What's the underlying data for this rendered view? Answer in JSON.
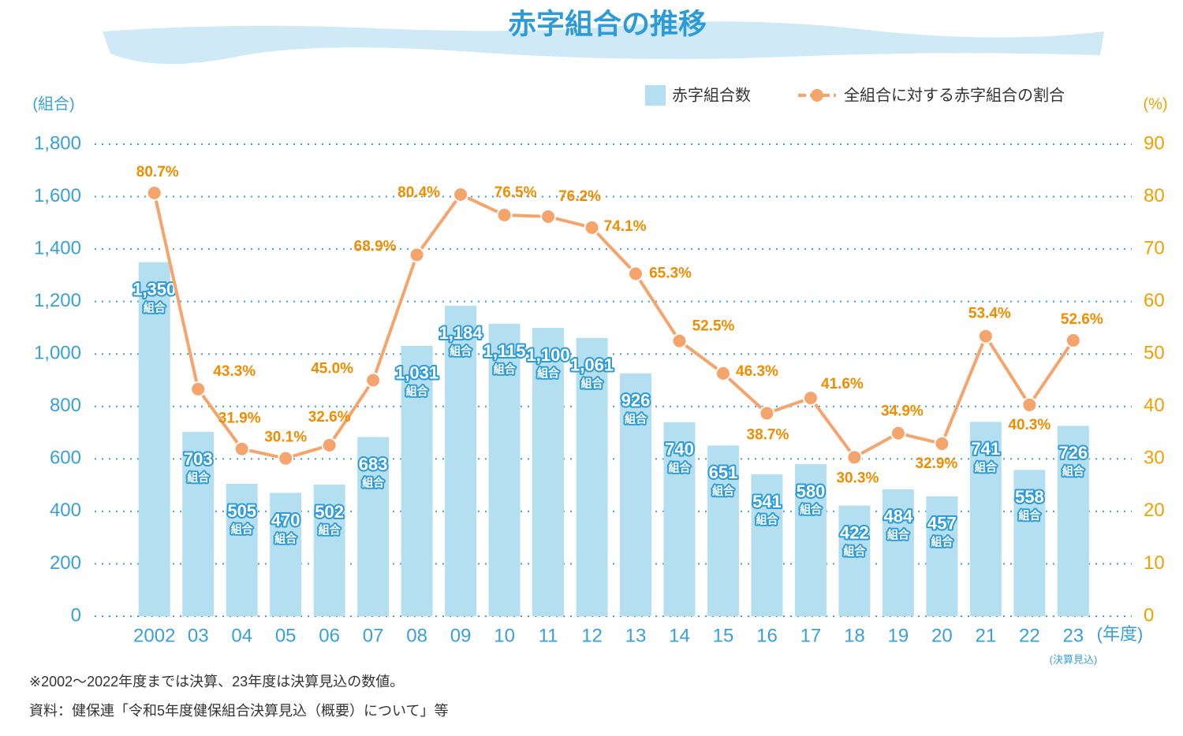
{
  "chart_data": {
    "type": "combo",
    "title": "赤字組合の推移",
    "y_label": "(組合)",
    "y2_label": "(%)",
    "x_label": "(年度)",
    "annotation": "(決算見込)",
    "categories": [
      "2002",
      "03",
      "04",
      "05",
      "06",
      "07",
      "08",
      "09",
      "10",
      "11",
      "12",
      "13",
      "14",
      "15",
      "16",
      "17",
      "18",
      "19",
      "20",
      "21",
      "22",
      "23"
    ],
    "series": [
      {
        "name": "赤字組合数",
        "type": "bar",
        "color": "#b3dff0",
        "label_unit": "組合",
        "values": [
          1350,
          703,
          505,
          470,
          502,
          683,
          1031,
          1184,
          1115,
          1100,
          1061,
          926,
          740,
          651,
          541,
          580,
          422,
          484,
          457,
          741,
          558,
          726
        ],
        "value_labels": [
          "1,350",
          "703",
          "505",
          "470",
          "502",
          "683",
          "1,031",
          "1,184",
          "1,115",
          "1,100",
          "1,061",
          "926",
          "740",
          "651",
          "541",
          "580",
          "422",
          "484",
          "457",
          "741",
          "558",
          "726"
        ]
      },
      {
        "name": "全組合に対する赤字組合の割合",
        "type": "line",
        "axis": "y2",
        "color": "#f5a46c",
        "values": [
          80.7,
          43.3,
          31.9,
          30.1,
          32.6,
          45.0,
          68.9,
          80.4,
          76.5,
          76.2,
          74.1,
          65.3,
          52.5,
          46.3,
          38.7,
          41.6,
          30.3,
          34.9,
          32.9,
          53.4,
          40.3,
          52.6
        ],
        "value_labels": [
          "80.7%",
          "43.3%",
          "31.9%",
          "30.1%",
          "32.6%",
          "45.0%",
          "68.9%",
          "80.4%",
          "76.5%",
          "76.2%",
          "74.1%",
          "65.3%",
          "52.5%",
          "46.3%",
          "38.7%",
          "41.6%",
          "30.3%",
          "34.9%",
          "32.9%",
          "53.4%",
          "40.3%",
          "52.6%"
        ]
      }
    ],
    "ylim": [
      0,
      1800
    ],
    "yticks": [
      0,
      200,
      400,
      600,
      800,
      {
        "value": 1000,
        "label": "1,000"
      },
      {
        "value": 1200,
        "label": "1,200"
      },
      {
        "value": 1400,
        "label": "1,400"
      },
      {
        "value": 1600,
        "label": "1,600"
      },
      {
        "value": 1800,
        "label": "1,800"
      }
    ],
    "y2lim": [
      0,
      90
    ],
    "y2ticks": [
      0,
      10,
      20,
      30,
      40,
      50,
      60,
      70,
      80,
      90
    ],
    "grid": true,
    "notes": [
      "※2002〜2022年度までは決算、23年度は決算見込の数値。",
      "資料：健保連「令和5年度健保組合決算見込（概要）について」等"
    ]
  }
}
